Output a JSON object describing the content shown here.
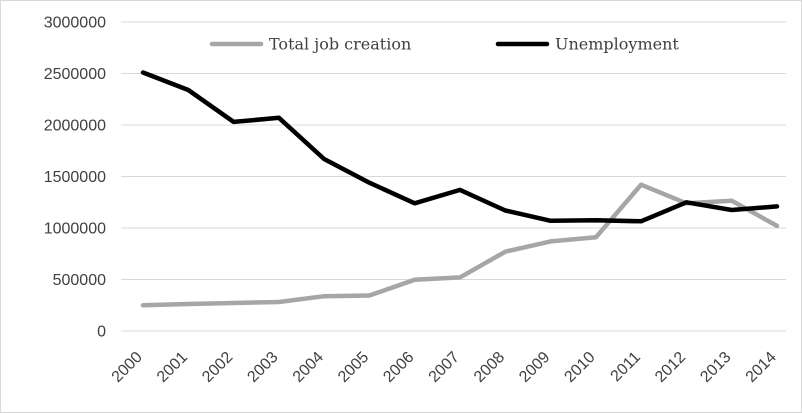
{
  "chart_data": {
    "type": "line",
    "title": "",
    "xlabel": "",
    "ylabel": "",
    "categories": [
      "2000",
      "2001",
      "2002",
      "2003",
      "2004",
      "2005",
      "2006",
      "2007",
      "2008",
      "2009",
      "2010",
      "2011",
      "2012",
      "2013",
      "2014"
    ],
    "ylim": [
      0,
      3000000
    ],
    "yticks": [
      "0",
      "500000",
      "1000000",
      "1500000",
      "2000000",
      "2500000",
      "3000000"
    ],
    "grid": true,
    "legend_position": "top",
    "series": [
      {
        "name": "Total job creation",
        "color": "#a6a6a6",
        "values": [
          250000,
          262000,
          272000,
          282000,
          338000,
          345000,
          498000,
          520000,
          770000,
          870000,
          910000,
          1420000,
          1240000,
          1265000,
          1020000
        ]
      },
      {
        "name": "Unemployment",
        "color": "#000000",
        "values": [
          2510000,
          2340000,
          2030000,
          2070000,
          1670000,
          1440000,
          1240000,
          1370000,
          1170000,
          1070000,
          1075000,
          1065000,
          1250000,
          1175000,
          1210000
        ]
      }
    ]
  }
}
